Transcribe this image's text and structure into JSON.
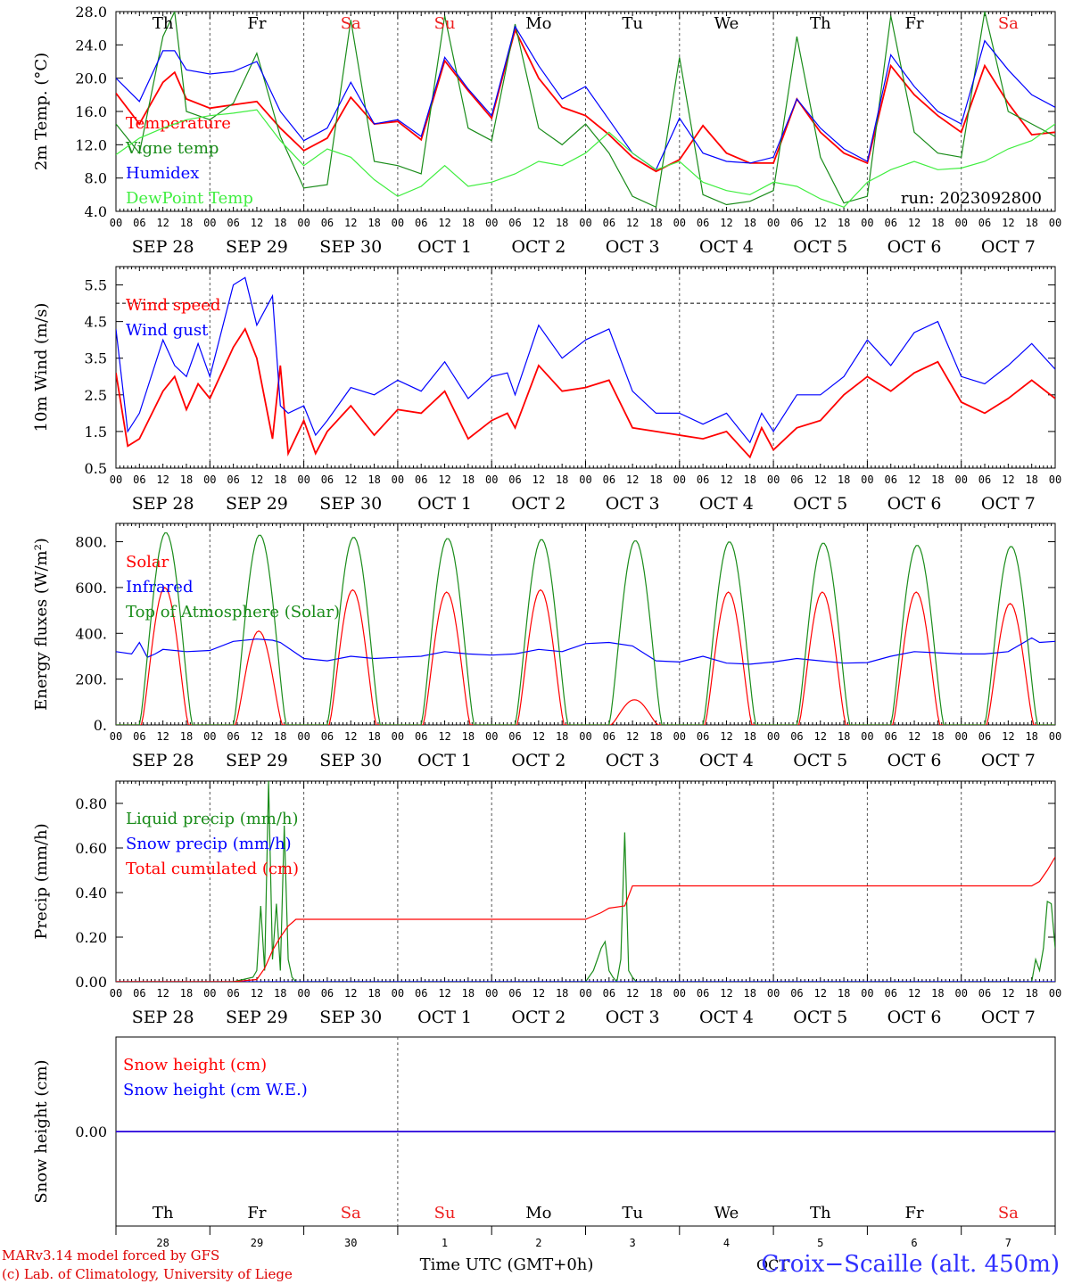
{
  "days_abbr": [
    "Th",
    "Fr",
    "Sa",
    "Su",
    "Mo",
    "Tu",
    "We",
    "Th",
    "Fr",
    "Sa"
  ],
  "weekend_color": "#ee2020",
  "weekday_color": "#000000",
  "hour_labels": [
    "00",
    "06",
    "12",
    "18"
  ],
  "final_hour_label": "00",
  "date_labels": [
    "SEP 28",
    "SEP 29",
    "SEP 30",
    "OCT  1",
    "OCT  2",
    "OCT  3",
    "OCT  4",
    "OCT  5",
    "OCT  6",
    "OCT  7"
  ],
  "bottom_day_numbers": [
    "28",
    "29",
    "30",
    "1",
    "2",
    "3",
    "4",
    "5",
    "6",
    "7"
  ],
  "run_label": "run: 2023092800",
  "xlabel": "Time UTC (GMT+0h)",
  "month_label": "OCT",
  "station_label": "Croix−Scaille (alt. 450m)",
  "footer_line1": "MARv3.14 model forced by GFS",
  "footer_line2": "(c) Lab. of Climatology, University of Liege",
  "chart_data": [
    {
      "type": "line",
      "ylabel": "2m Temp. (°C)",
      "ylim": [
        4,
        28
      ],
      "yticks": [
        "4.0",
        "8.0",
        "12.0",
        "16.0",
        "20.0",
        "24.0",
        "28.0"
      ],
      "x_unit": "hours since SEP 28 00 UTC",
      "series": [
        {
          "name": "Temperature",
          "color": "#ff0000",
          "x": [
            0,
            6,
            12,
            15,
            18,
            24,
            30,
            36,
            42,
            48,
            54,
            60,
            66,
            72,
            78,
            84,
            90,
            96,
            102,
            108,
            114,
            120,
            126,
            132,
            138,
            144,
            150,
            156,
            162,
            168,
            174,
            180,
            186,
            192,
            198,
            204,
            210,
            216,
            222,
            228,
            234,
            240
          ],
          "y": [
            18.2,
            14.5,
            19.5,
            20.7,
            17.5,
            16.4,
            16.8,
            17.2,
            14.0,
            11.3,
            12.8,
            17.7,
            14.5,
            14.8,
            12.6,
            22.1,
            18.5,
            15.2,
            25.8,
            20.0,
            16.5,
            15.5,
            13.2,
            10.5,
            8.8,
            10.2,
            14.3,
            11.0,
            9.8,
            9.8,
            17.5,
            13.5,
            11.0,
            9.8,
            21.5,
            18.0,
            15.5,
            13.5,
            21.5,
            17.0,
            13.2,
            13.5
          ]
        },
        {
          "name": "Vigne temp",
          "color": "#1a8c1a",
          "x": [
            0,
            6,
            12,
            15,
            18,
            24,
            30,
            36,
            42,
            48,
            54,
            60,
            66,
            72,
            78,
            84,
            90,
            96,
            102,
            108,
            114,
            120,
            126,
            132,
            138,
            144,
            150,
            156,
            162,
            168,
            174,
            180,
            186,
            192,
            198,
            204,
            210,
            216,
            222,
            228,
            234,
            240
          ],
          "y": [
            14.5,
            11.0,
            25.0,
            28.0,
            16.0,
            15.0,
            17.0,
            23.0,
            13.0,
            6.8,
            7.2,
            27.0,
            10.0,
            9.5,
            8.5,
            27.5,
            14.0,
            12.5,
            26.5,
            14.0,
            12.0,
            14.5,
            11.0,
            5.8,
            4.5,
            22.5,
            6.0,
            4.8,
            5.2,
            6.5,
            25.0,
            10.5,
            5.0,
            5.8,
            27.5,
            13.5,
            11.0,
            10.5,
            28.0,
            16.0,
            14.5,
            13.0
          ]
        },
        {
          "name": "Humidex",
          "color": "#0000ff",
          "x": [
            0,
            6,
            12,
            15,
            18,
            24,
            30,
            36,
            42,
            48,
            54,
            60,
            66,
            72,
            78,
            84,
            90,
            96,
            102,
            108,
            114,
            120,
            126,
            132,
            138,
            144,
            150,
            156,
            162,
            168,
            174,
            180,
            186,
            192,
            198,
            204,
            210,
            216,
            222,
            228,
            234,
            240
          ],
          "y": [
            20.0,
            17.2,
            23.3,
            23.3,
            21.0,
            20.5,
            20.8,
            22.0,
            16.0,
            12.5,
            14.0,
            19.5,
            14.5,
            15.0,
            13.0,
            22.5,
            18.7,
            15.5,
            26.2,
            21.5,
            17.5,
            19.0,
            15.0,
            11.0,
            9.0,
            15.2,
            11.0,
            10.0,
            9.8,
            10.5,
            17.5,
            14.0,
            11.5,
            10.0,
            22.8,
            19.0,
            16.0,
            14.5,
            24.5,
            21.0,
            18.0,
            16.5
          ]
        },
        {
          "name": "DewPoint Temp",
          "color": "#40ee40",
          "x": [
            0,
            6,
            12,
            15,
            18,
            24,
            30,
            36,
            42,
            48,
            54,
            60,
            66,
            72,
            78,
            84,
            90,
            96,
            102,
            108,
            114,
            120,
            126,
            132,
            138,
            144,
            150,
            156,
            162,
            168,
            174,
            180,
            186,
            192,
            198,
            204,
            210,
            216,
            222,
            228,
            234,
            240
          ],
          "y": [
            10.8,
            12.8,
            14.0,
            14.5,
            15.0,
            15.5,
            15.8,
            16.2,
            12.5,
            9.5,
            11.5,
            10.5,
            7.8,
            5.8,
            7.0,
            9.5,
            7.0,
            7.5,
            8.5,
            10.0,
            9.5,
            11.0,
            13.5,
            11.0,
            9.0,
            10.0,
            7.5,
            6.5,
            6.0,
            7.5,
            7.0,
            5.5,
            4.5,
            7.5,
            9.0,
            10.0,
            9.0,
            9.2,
            10.0,
            11.5,
            12.5,
            14.5
          ]
        }
      ]
    },
    {
      "type": "line",
      "ylabel": "10m Wind (m/s)",
      "ylim": [
        0.5,
        6.0
      ],
      "yticks": [
        "0.5",
        "1.5",
        "2.5",
        "3.5",
        "4.5",
        "5.5"
      ],
      "reference_line": 5.0,
      "x_unit": "hours since SEP 28 00 UTC",
      "series": [
        {
          "name": "Wind speed",
          "color": "#ff0000",
          "x": [
            0,
            3,
            6,
            12,
            15,
            18,
            21,
            24,
            30,
            33,
            36,
            40,
            42,
            44,
            48,
            51,
            54,
            60,
            66,
            72,
            78,
            84,
            90,
            96,
            100,
            102,
            108,
            114,
            120,
            126,
            132,
            138,
            144,
            150,
            156,
            162,
            165,
            168,
            174,
            180,
            186,
            192,
            198,
            204,
            210,
            216,
            222,
            228,
            234,
            240
          ],
          "y": [
            3.1,
            1.1,
            1.3,
            2.6,
            3.0,
            2.1,
            2.8,
            2.4,
            3.8,
            4.3,
            3.5,
            1.3,
            3.3,
            0.9,
            1.8,
            0.9,
            1.5,
            2.2,
            1.4,
            2.1,
            2.0,
            2.6,
            1.3,
            1.8,
            2.0,
            1.6,
            3.3,
            2.6,
            2.7,
            2.9,
            1.6,
            1.5,
            1.4,
            1.3,
            1.5,
            0.8,
            1.6,
            1.0,
            1.6,
            1.8,
            2.5,
            3.0,
            2.6,
            3.1,
            3.4,
            2.3,
            2.0,
            2.4,
            2.9,
            2.4
          ]
        },
        {
          "name": "Wind gust",
          "color": "#0000ff",
          "x": [
            0,
            3,
            6,
            12,
            15,
            18,
            21,
            24,
            30,
            33,
            36,
            40,
            42,
            44,
            48,
            51,
            54,
            60,
            66,
            72,
            78,
            84,
            90,
            96,
            100,
            102,
            108,
            114,
            120,
            126,
            132,
            138,
            144,
            150,
            156,
            162,
            165,
            168,
            174,
            180,
            186,
            192,
            198,
            204,
            210,
            216,
            222,
            228,
            234,
            240
          ],
          "y": [
            4.3,
            1.5,
            2.0,
            4.0,
            3.3,
            3.0,
            3.9,
            3.0,
            5.5,
            5.7,
            4.4,
            5.2,
            2.2,
            2.0,
            2.2,
            1.4,
            1.8,
            2.7,
            2.5,
            2.9,
            2.6,
            3.4,
            2.4,
            3.0,
            3.1,
            2.5,
            4.4,
            3.5,
            4.0,
            4.3,
            2.6,
            2.0,
            2.0,
            1.7,
            2.0,
            1.2,
            2.0,
            1.5,
            2.5,
            2.5,
            3.0,
            4.0,
            3.3,
            4.2,
            4.5,
            3.0,
            2.8,
            3.3,
            3.9,
            3.2
          ]
        }
      ]
    },
    {
      "type": "line",
      "ylabel": "Energy fluxes (W/m²)",
      "ylim": [
        0,
        880
      ],
      "yticks": [
        "0.",
        "200.",
        "400.",
        "600.",
        "800."
      ],
      "x_unit": "hours since SEP 28 00 UTC",
      "series": [
        {
          "name": "Solar",
          "color": "#ff0000",
          "daily_peak": [
            600,
            410,
            590,
            580,
            590,
            110,
            580,
            580,
            580,
            530
          ]
        },
        {
          "name": "Infrared",
          "color": "#0000ff",
          "x": [
            0,
            4,
            6,
            8,
            10,
            12,
            18,
            24,
            30,
            36,
            40,
            42,
            48,
            54,
            60,
            66,
            72,
            78,
            84,
            90,
            96,
            102,
            108,
            114,
            120,
            126,
            132,
            138,
            144,
            150,
            156,
            162,
            168,
            174,
            180,
            186,
            192,
            198,
            204,
            210,
            216,
            222,
            228,
            234,
            236,
            240
          ],
          "y": [
            320,
            310,
            360,
            295,
            310,
            330,
            320,
            325,
            365,
            375,
            370,
            360,
            290,
            280,
            300,
            290,
            295,
            300,
            320,
            310,
            305,
            310,
            330,
            320,
            355,
            360,
            345,
            280,
            275,
            300,
            270,
            265,
            275,
            290,
            280,
            270,
            272,
            300,
            320,
            315,
            310,
            310,
            320,
            380,
            360,
            365
          ]
        },
        {
          "name": "Top of Atmosphere (Solar)",
          "color": "#1a8c1a",
          "daily_peak": [
            840,
            830,
            820,
            815,
            810,
            805,
            800,
            795,
            785,
            780
          ]
        }
      ]
    },
    {
      "type": "line",
      "ylabel": "Precip (mm/h)",
      "ylim": [
        0,
        0.9
      ],
      "yticks": [
        "0.00",
        "0.20",
        "0.40",
        "0.60",
        "0.80"
      ],
      "x_unit": "hours since SEP 28 00 UTC",
      "series": [
        {
          "name": "Liquid precip (mm/h)",
          "color": "#1a8c1a",
          "x": [
            0,
            30,
            35,
            36,
            37,
            38,
            39,
            40,
            41,
            42,
            43,
            44,
            45,
            46,
            47,
            48,
            120,
            122,
            123,
            124,
            125,
            126,
            127,
            128,
            129,
            130,
            131,
            132,
            133,
            134,
            135,
            234,
            235,
            236,
            237,
            238,
            239,
            240
          ],
          "y": [
            0,
            0,
            0.02,
            0.05,
            0.34,
            0.05,
            0.9,
            0.1,
            0.35,
            0.05,
            0.7,
            0.1,
            0.02,
            0,
            0,
            0,
            0,
            0.05,
            0.1,
            0.15,
            0.18,
            0.05,
            0.02,
            0,
            0.1,
            0.67,
            0.05,
            0.02,
            0,
            0,
            0,
            0,
            0.1,
            0.05,
            0.15,
            0.36,
            0.35,
            0.15
          ]
        },
        {
          "name": "Snow precip (mm/h)",
          "color": "#0000ff",
          "x": [
            0,
            240
          ],
          "y": [
            0,
            0
          ]
        },
        {
          "name": "Total cumulated (cm)",
          "color": "#ff0000",
          "x": [
            0,
            30,
            36,
            38,
            40,
            42,
            44,
            46,
            48,
            120,
            124,
            126,
            130,
            132,
            134,
            234,
            236,
            238,
            240
          ],
          "y": [
            0,
            0,
            0.01,
            0.06,
            0.14,
            0.2,
            0.25,
            0.28,
            0.28,
            0.28,
            0.31,
            0.33,
            0.34,
            0.43,
            0.43,
            0.43,
            0.45,
            0.5,
            0.56
          ]
        }
      ]
    },
    {
      "type": "line",
      "ylabel": "Snow height (cm)",
      "ylim": [
        -1,
        1
      ],
      "yticks": [
        "0.00"
      ],
      "x_unit": "hours since SEP 28 00 UTC",
      "series": [
        {
          "name": "Snow height (cm)",
          "color": "#ff0000",
          "x": [
            0,
            240
          ],
          "y": [
            0,
            0
          ]
        },
        {
          "name": "Snow height (cm W.E.)",
          "color": "#0000ff",
          "x": [
            0,
            240
          ],
          "y": [
            0,
            0
          ]
        }
      ]
    }
  ]
}
